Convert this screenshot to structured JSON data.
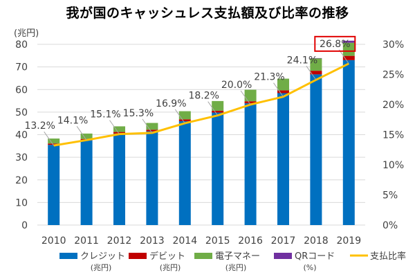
{
  "title": "我が国のキャッシュレス支払額及び比率の推移",
  "chart_data": {
    "type": "bar",
    "stacked": true,
    "title": "我が国のキャッシュレス支払額及び比率の推移",
    "left_unit": "(兆円)",
    "categories": [
      "2010",
      "2011",
      "2012",
      "2013",
      "2014",
      "2015",
      "2016",
      "2017",
      "2018",
      "2019"
    ],
    "series": [
      {
        "name": "クレジット",
        "unit": "(兆円)",
        "color": "#0070C0",
        "values": [
          35.5,
          37.5,
          40.5,
          41.5,
          46.0,
          49.8,
          53.9,
          58.4,
          66.7,
          73.0
        ]
      },
      {
        "name": "デビット",
        "unit": "(兆円)",
        "color": "#C00000",
        "values": [
          0.6,
          0.6,
          0.7,
          0.7,
          0.8,
          0.8,
          0.9,
          1.2,
          1.6,
          1.9
        ]
      },
      {
        "name": "電子マネー",
        "unit": "(兆円)",
        "color": "#70AD47",
        "values": [
          2.2,
          2.4,
          2.5,
          3.0,
          3.6,
          4.3,
          5.1,
          5.2,
          5.5,
          5.8
        ]
      },
      {
        "name": "QRコード",
        "unit": "",
        "color": "#7030A0",
        "values": [
          0,
          0,
          0,
          0,
          0,
          0,
          0,
          0,
          0.1,
          0.9
        ]
      }
    ],
    "line": {
      "name": "支払比率",
      "unit": "(%)",
      "color": "#FFC000",
      "values": [
        13.2,
        14.1,
        15.1,
        15.3,
        16.9,
        18.2,
        20.0,
        21.3,
        24.1,
        26.8
      ],
      "labels": [
        "13.2%",
        "14.1%",
        "15.1%",
        "15.3%",
        "16.9%",
        "18.2%",
        "20.0%",
        "21.3%",
        "24.1%",
        "26.8%"
      ]
    },
    "y_left": {
      "range": [
        0,
        80
      ],
      "ticks": [
        "0",
        "10",
        "20",
        "30",
        "40",
        "50",
        "60",
        "70",
        "80"
      ]
    },
    "y_right": {
      "range": [
        0,
        30
      ],
      "ticks": [
        "0%",
        "5%",
        "10%",
        "15%",
        "20%",
        "25%",
        "30%"
      ]
    },
    "highlight_index": 9,
    "highlight_color": "#E00000",
    "grid": true,
    "legend": "bottom"
  }
}
